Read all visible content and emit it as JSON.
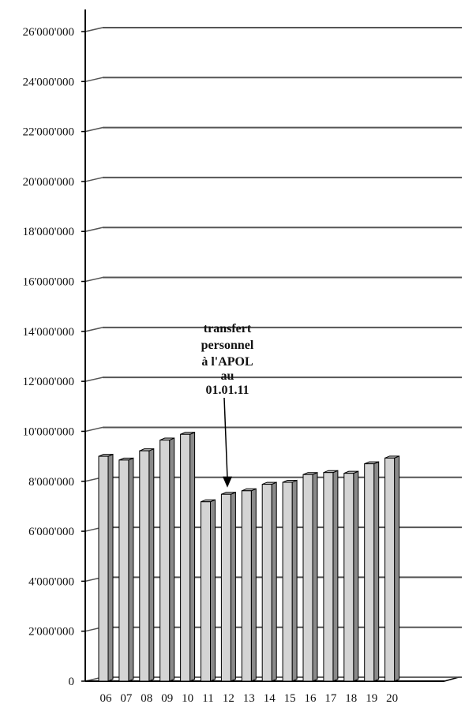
{
  "chart_data": {
    "type": "bar",
    "categories": [
      "06",
      "07",
      "08",
      "09",
      "10",
      "11",
      "12",
      "13",
      "14",
      "15",
      "16",
      "17",
      "18",
      "19",
      "20"
    ],
    "values": [
      9000000,
      8850000,
      9220000,
      9650000,
      9880000,
      7180000,
      7480000,
      7620000,
      7880000,
      7960000,
      8270000,
      8350000,
      8320000,
      8700000,
      8930000
    ],
    "ylim": [
      0,
      26000000
    ],
    "yticks": [
      0,
      2000000,
      4000000,
      6000000,
      8000000,
      10000000,
      12000000,
      14000000,
      16000000,
      18000000,
      20000000,
      22000000,
      24000000,
      26000000
    ],
    "ytick_labels": [
      "0",
      "2'000'000",
      "4'000'000",
      "6'000'000",
      "8'000'000",
      "10'000'000",
      "12'000'000",
      "14'000'000",
      "16'000'000",
      "18'000'000",
      "20'000'000",
      "22'000'000",
      "24'000'000",
      "26'000'000"
    ],
    "grid": true,
    "bar_color": "#d4d4d4",
    "bar_shade": "#8a8a8a",
    "annotation": {
      "lines": [
        "transfert",
        "personnel",
        "à l'APOL",
        "au",
        "01.01.11"
      ],
      "target_category": "11"
    }
  }
}
